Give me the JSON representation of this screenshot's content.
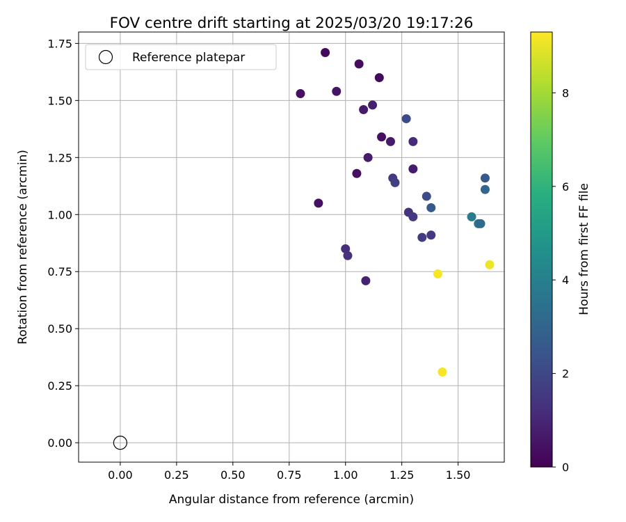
{
  "chart_data": {
    "type": "scatter",
    "title": "FOV centre drift starting at 2025/03/20 19:17:26",
    "xlabel": "Angular distance from reference (arcmin)",
    "ylabel": "Rotation from reference (arcmin)",
    "xlim": [
      -0.185,
      1.705
    ],
    "ylim": [
      -0.085,
      1.8
    ],
    "xticks": [
      0.0,
      0.25,
      0.5,
      0.75,
      1.0,
      1.25,
      1.5
    ],
    "xtick_labels": [
      "0.00",
      "0.25",
      "0.50",
      "0.75",
      "1.00",
      "1.25",
      "1.50"
    ],
    "yticks": [
      0.0,
      0.25,
      0.5,
      0.75,
      1.0,
      1.25,
      1.5,
      1.75
    ],
    "ytick_labels": [
      "0.00",
      "0.25",
      "0.50",
      "0.75",
      "1.00",
      "1.25",
      "1.50",
      "1.75"
    ],
    "grid": true,
    "legend": {
      "position": "top-left",
      "entries": [
        "Reference platepar"
      ]
    },
    "reference": {
      "x": 0.0,
      "y": 0.0
    },
    "colorbar": {
      "label": "Hours from first FF file",
      "colormap": "viridis",
      "range": [
        0,
        9.3
      ],
      "ticks": [
        0,
        2,
        4,
        6,
        8
      ],
      "tick_labels": [
        "0",
        "2",
        "4",
        "6",
        "8"
      ]
    },
    "points": [
      {
        "x": 0.91,
        "y": 1.71,
        "c": 0.2
      },
      {
        "x": 1.06,
        "y": 1.66,
        "c": 0.3
      },
      {
        "x": 1.15,
        "y": 1.6,
        "c": 0.2
      },
      {
        "x": 0.8,
        "y": 1.53,
        "c": 0.4
      },
      {
        "x": 0.96,
        "y": 1.54,
        "c": 0.5
      },
      {
        "x": 1.08,
        "y": 1.46,
        "c": 0.7
      },
      {
        "x": 1.12,
        "y": 1.48,
        "c": 0.8
      },
      {
        "x": 1.27,
        "y": 1.42,
        "c": 2.1
      },
      {
        "x": 1.16,
        "y": 1.34,
        "c": 0.4
      },
      {
        "x": 1.2,
        "y": 1.32,
        "c": 0.7
      },
      {
        "x": 1.3,
        "y": 1.32,
        "c": 1.1
      },
      {
        "x": 1.1,
        "y": 1.25,
        "c": 0.7
      },
      {
        "x": 1.05,
        "y": 1.18,
        "c": 0.4
      },
      {
        "x": 1.3,
        "y": 1.2,
        "c": 0.7
      },
      {
        "x": 1.21,
        "y": 1.16,
        "c": 1.6
      },
      {
        "x": 1.22,
        "y": 1.14,
        "c": 1.7
      },
      {
        "x": 1.36,
        "y": 1.08,
        "c": 2.1
      },
      {
        "x": 1.38,
        "y": 1.03,
        "c": 2.6
      },
      {
        "x": 1.28,
        "y": 1.01,
        "c": 1.3
      },
      {
        "x": 1.3,
        "y": 0.99,
        "c": 1.5
      },
      {
        "x": 0.88,
        "y": 1.05,
        "c": 0.4
      },
      {
        "x": 1.34,
        "y": 0.9,
        "c": 1.6
      },
      {
        "x": 1.38,
        "y": 0.91,
        "c": 1.5
      },
      {
        "x": 1.0,
        "y": 0.85,
        "c": 1.2
      },
      {
        "x": 1.01,
        "y": 0.82,
        "c": 1.3
      },
      {
        "x": 1.09,
        "y": 0.71,
        "c": 0.9
      },
      {
        "x": 1.62,
        "y": 1.16,
        "c": 2.6
      },
      {
        "x": 1.62,
        "y": 1.11,
        "c": 3.1
      },
      {
        "x": 1.56,
        "y": 0.99,
        "c": 3.8
      },
      {
        "x": 1.59,
        "y": 0.96,
        "c": 3.5
      },
      {
        "x": 1.6,
        "y": 0.96,
        "c": 3.2
      },
      {
        "x": 1.41,
        "y": 0.74,
        "c": 9.2
      },
      {
        "x": 1.64,
        "y": 0.78,
        "c": 9.1
      },
      {
        "x": 1.43,
        "y": 0.31,
        "c": 9.2
      }
    ]
  }
}
